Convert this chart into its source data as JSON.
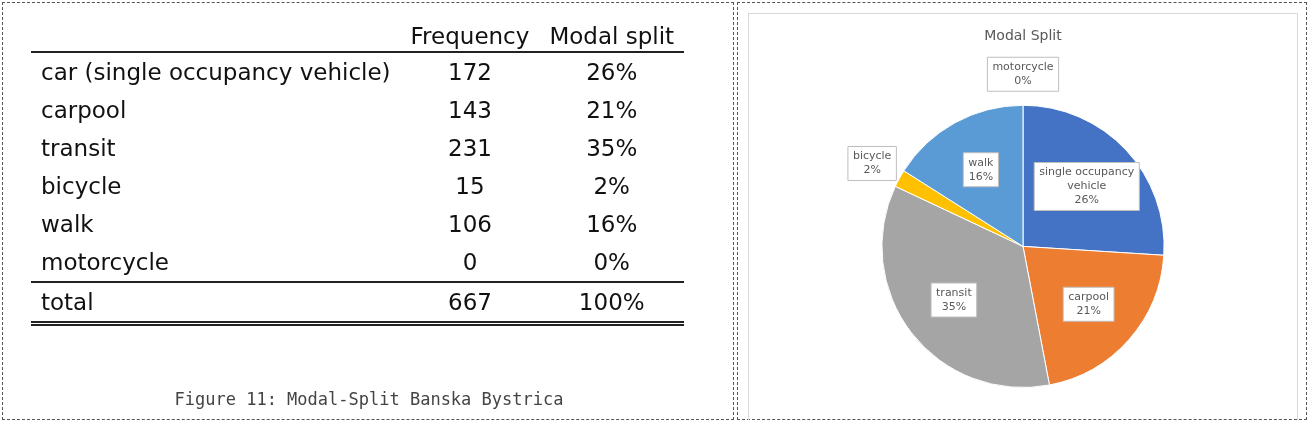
{
  "chart_data": [
    {
      "type": "other",
      "categories": [
        "car (single occupancy vehicle)",
        "carpool",
        "transit",
        "bicycle",
        "walk",
        "motorcycle",
        "total"
      ],
      "data_labels": true,
      "series": [
        {
          "name": "Frequency",
          "values": [
            172,
            143,
            231,
            15,
            106,
            0,
            667
          ]
        },
        {
          "name": "Modal split",
          "values": [
            26,
            21,
            35,
            2,
            16,
            0,
            100
          ],
          "value_labels": [
            "26%",
            "21%",
            "35%",
            "2%",
            "16%",
            "0%",
            "100%"
          ]
        }
      ],
      "annotations": [
        "Figure 11: Modal-Split Banska Bystrica"
      ]
    },
    {
      "type": "pie",
      "title": "Modal Split",
      "categories": [
        "single occupancy vehicle",
        "carpool",
        "transit",
        "bicycle",
        "walk",
        "motorcycle"
      ],
      "values": [
        26,
        21,
        35,
        2,
        16,
        0
      ],
      "value_labels": [
        "26%",
        "21%",
        "35%",
        "2%",
        "16%",
        "0%"
      ],
      "colors": [
        "#4472c4",
        "#ed7d31",
        "#a5a5a5",
        "#ffc000",
        "#5b9bd5",
        "#70ad47"
      ],
      "legend": false
    }
  ]
}
